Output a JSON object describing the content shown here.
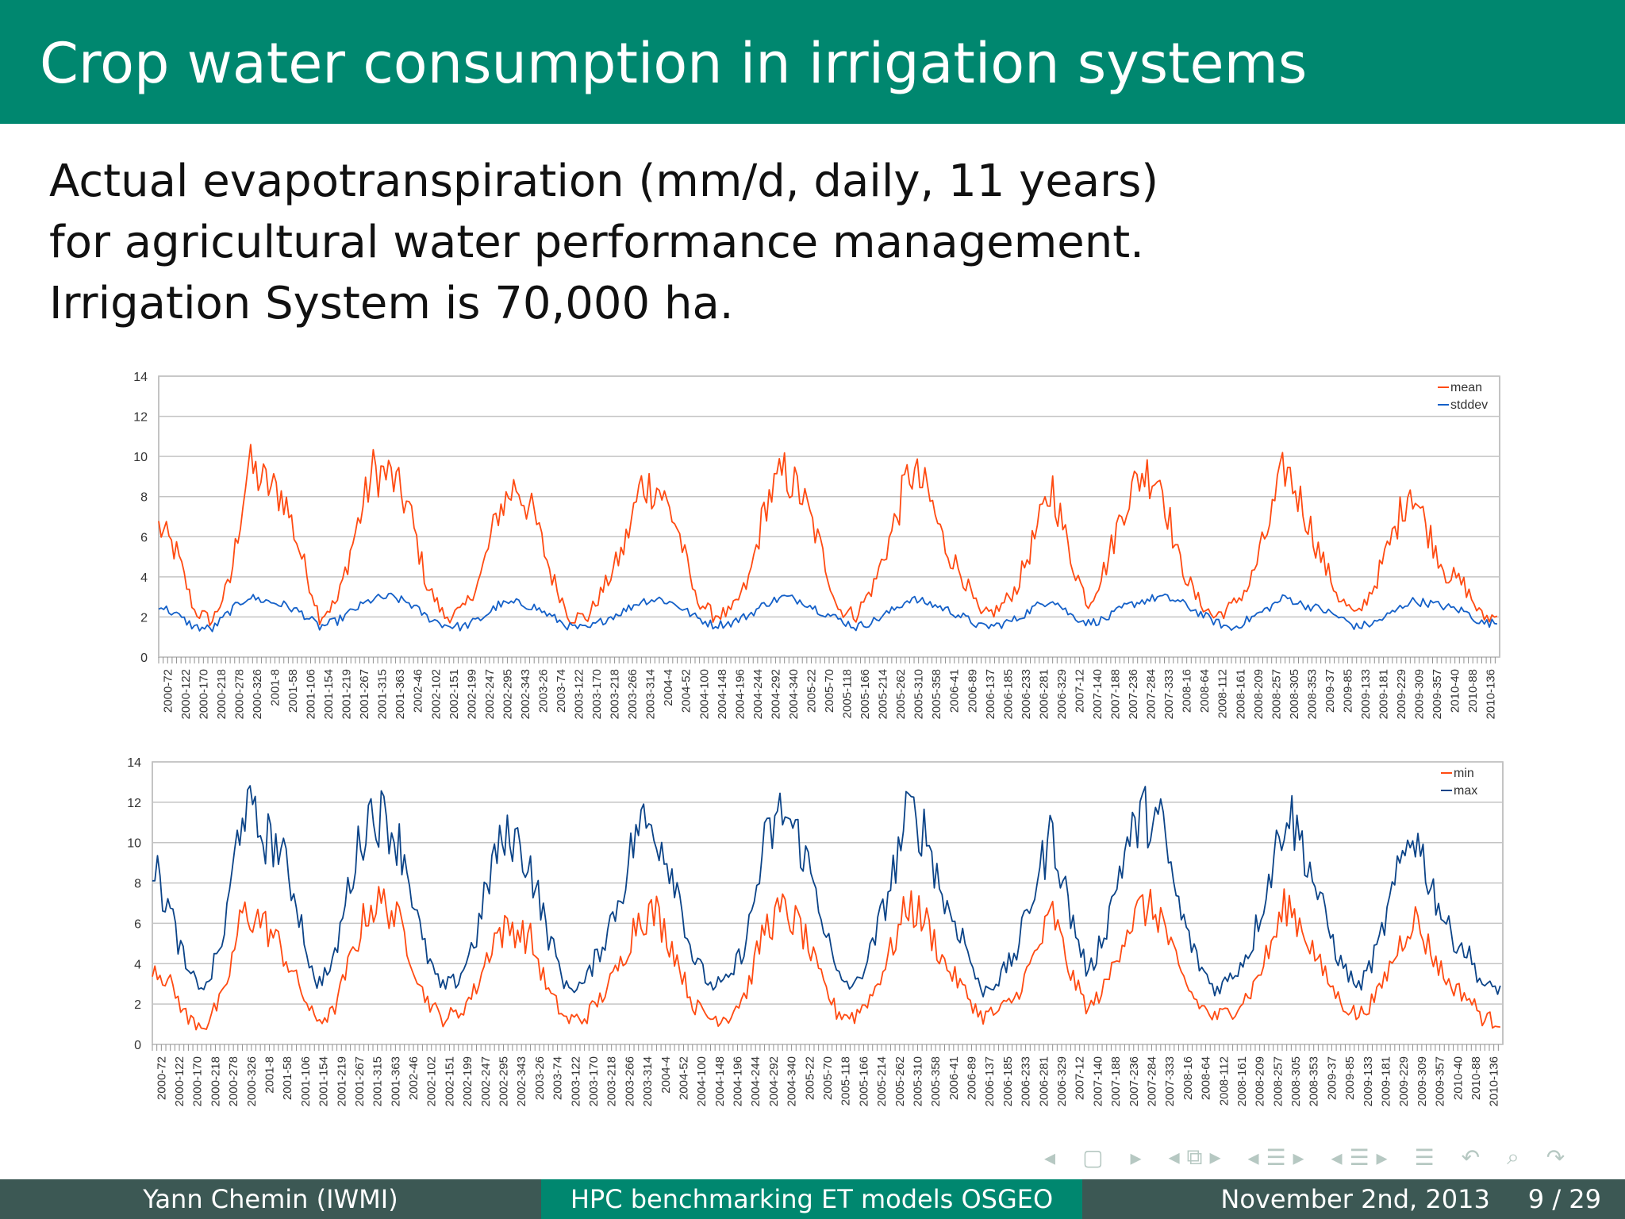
{
  "slide": {
    "title": "Crop water consumption in irrigation systems",
    "lines": [
      "Actual evapotranspiration (mm/d, daily, 11 years)",
      "for agricultural water performance management.",
      "Irrigation System is 70,000 ha."
    ]
  },
  "footer": {
    "author": "Yann Chemin  (IWMI)",
    "talk": "HPC benchmarking ET models OSGEO",
    "date": "November 2nd, 2013",
    "page": "9 / 29"
  },
  "nav_icons": [
    "nav-left-icon",
    "frame-icon",
    "nav-right-icon",
    "nav-left-icon",
    "subsection-icon",
    "nav-right-icon",
    "nav-left-icon",
    "section-icon",
    "nav-right-icon",
    "nav-left-icon",
    "doc-icon",
    "nav-right-icon",
    "menu-icon",
    "back-icon",
    "search-icon",
    "forward-icon"
  ],
  "colors": {
    "header": "#00876f",
    "footer_dark": "#3c5854",
    "orange": "#ff4b12",
    "blue": "#1460c8",
    "dark_blue": "#0c4488"
  },
  "chart_data": [
    {
      "type": "line",
      "title": "",
      "xlabel": "",
      "ylabel": "",
      "ylim": [
        0,
        14
      ],
      "yticks": [
        0,
        2,
        4,
        6,
        8,
        10,
        12,
        14
      ],
      "grid": true,
      "legend_position": "top-right",
      "categories": [
        "2000-72",
        "2000-122",
        "2000-170",
        "2000-218",
        "2000-278",
        "2000-326",
        "2001-8",
        "2001-58",
        "2001-106",
        "2001-154",
        "2001-219",
        "2001-267",
        "2001-315",
        "2001-363",
        "2002-46",
        "2002-102",
        "2002-151",
        "2002-199",
        "2002-247",
        "2002-295",
        "2002-343",
        "2003-26",
        "2003-74",
        "2003-122",
        "2003-170",
        "2003-218",
        "2003-266",
        "2003-314",
        "2004-4",
        "2004-52",
        "2004-100",
        "2004-148",
        "2004-196",
        "2004-244",
        "2004-292",
        "2004-340",
        "2005-22",
        "2005-70",
        "2005-118",
        "2005-166",
        "2005-214",
        "2005-262",
        "2005-310",
        "2005-358",
        "2006-41",
        "2006-89",
        "2006-137",
        "2006-185",
        "2006-233",
        "2006-281",
        "2006-329",
        "2007-12",
        "2007-140",
        "2007-188",
        "2007-236",
        "2007-284",
        "2007-333",
        "2008-16",
        "2008-64",
        "2008-112",
        "2008-161",
        "2008-209",
        "2008-257",
        "2008-305",
        "2008-353",
        "2009-37",
        "2009-85",
        "2009-133",
        "2009-181",
        "2009-229",
        "2009-309",
        "2009-357",
        "2010-40",
        "2010-88",
        "2010-136"
      ],
      "series": [
        {
          "name": "mean",
          "color": "#ff4b12",
          "values": [
            6.5,
            5.2,
            2.3,
            1.8,
            3.8,
            9.5,
            8.6,
            8.0,
            5.0,
            2.0,
            2.8,
            6.2,
            9.3,
            9.0,
            7.4,
            3.6,
            2.0,
            2.3,
            4.0,
            7.3,
            8.6,
            7.0,
            4.0,
            2.0,
            2.0,
            3.6,
            5.4,
            8.6,
            8.4,
            6.5,
            3.0,
            2.1,
            2.2,
            3.8,
            7.8,
            9.2,
            8.0,
            5.5,
            2.4,
            2.1,
            3.6,
            6.2,
            9.3,
            8.2,
            5.5,
            4.0,
            2.0,
            2.4,
            3.5,
            6.0,
            8.5,
            5.0,
            2.6,
            4.6,
            7.6,
            9.2,
            9.0,
            5.0,
            3.0,
            2.0,
            2.5,
            3.6,
            6.3,
            9.5,
            7.5,
            5.0,
            3.0,
            2.0,
            3.6,
            6.0,
            8.6,
            6.3,
            4.2,
            3.6,
            2.0
          ]
        },
        {
          "name": "stddev",
          "color": "#1460c8",
          "values": [
            2.6,
            2.1,
            1.5,
            1.4,
            2.3,
            3.0,
            2.8,
            2.6,
            2.2,
            1.5,
            1.8,
            2.4,
            2.9,
            3.0,
            2.7,
            2.0,
            1.6,
            1.5,
            1.9,
            2.6,
            2.7,
            2.5,
            2.0,
            1.5,
            1.4,
            1.9,
            2.3,
            2.8,
            2.9,
            2.6,
            2.0,
            1.6,
            1.7,
            2.1,
            2.7,
            3.0,
            2.8,
            2.3,
            1.9,
            1.5,
            1.8,
            2.3,
            2.9,
            2.7,
            2.4,
            2.0,
            1.5,
            1.6,
            1.9,
            2.5,
            2.9,
            2.1,
            1.7,
            1.9,
            2.5,
            2.8,
            3.0,
            2.8,
            2.3,
            1.8,
            1.4,
            1.9,
            2.4,
            3.0,
            2.6,
            2.4,
            2.0,
            1.5,
            1.7,
            2.2,
            2.8,
            2.7,
            2.5,
            2.3,
            1.7
          ]
        }
      ]
    },
    {
      "type": "line",
      "title": "",
      "xlabel": "",
      "ylabel": "",
      "ylim": [
        0,
        14
      ],
      "yticks": [
        0,
        2,
        4,
        6,
        8,
        10,
        12,
        14
      ],
      "grid": true,
      "legend_position": "top-right",
      "categories": [
        "2000-72",
        "2000-122",
        "2000-170",
        "2000-218",
        "2000-278",
        "2000-326",
        "2001-8",
        "2001-58",
        "2001-106",
        "2001-154",
        "2001-219",
        "2001-267",
        "2001-315",
        "2001-363",
        "2002-46",
        "2002-102",
        "2002-151",
        "2002-199",
        "2002-247",
        "2002-295",
        "2002-343",
        "2003-26",
        "2003-74",
        "2003-122",
        "2003-170",
        "2003-218",
        "2003-266",
        "2003-314",
        "2004-4",
        "2004-52",
        "2004-100",
        "2004-148",
        "2004-196",
        "2004-244",
        "2004-292",
        "2004-340",
        "2005-22",
        "2005-70",
        "2005-118",
        "2005-166",
        "2005-214",
        "2005-262",
        "2005-310",
        "2005-358",
        "2006-41",
        "2006-89",
        "2006-137",
        "2006-185",
        "2006-233",
        "2006-281",
        "2006-329",
        "2007-12",
        "2007-140",
        "2007-188",
        "2007-236",
        "2007-284",
        "2007-333",
        "2008-16",
        "2008-64",
        "2008-112",
        "2008-161",
        "2008-209",
        "2008-257",
        "2008-305",
        "2008-353",
        "2009-37",
        "2009-85",
        "2009-133",
        "2009-181",
        "2009-229",
        "2009-309",
        "2009-357",
        "2010-40",
        "2010-88",
        "2010-136"
      ],
      "series": [
        {
          "name": "min",
          "color": "#ff4b12",
          "values": [
            4.0,
            3.0,
            1.2,
            1.0,
            2.5,
            6.5,
            6.2,
            5.0,
            3.2,
            1.2,
            1.5,
            4.2,
            6.8,
            7.0,
            5.5,
            2.6,
            1.3,
            1.5,
            2.8,
            5.4,
            5.8,
            5.2,
            2.6,
            1.2,
            1.3,
            2.4,
            4.0,
            6.4,
            6.5,
            4.6,
            2.0,
            1.3,
            1.4,
            2.6,
            5.8,
            6.6,
            5.8,
            3.5,
            1.6,
            1.4,
            2.5,
            4.6,
            7.0,
            6.0,
            4.0,
            2.8,
            1.4,
            1.6,
            2.4,
            4.4,
            6.5,
            3.5,
            1.7,
            3.0,
            5.6,
            6.8,
            6.4,
            3.6,
            2.1,
            1.3,
            1.7,
            2.6,
            4.6,
            7.0,
            5.6,
            3.6,
            2.1,
            1.4,
            2.4,
            4.4,
            6.4,
            4.6,
            3.0,
            2.4,
            1.2
          ]
        },
        {
          "name": "max",
          "color": "#0c4488",
          "values": [
            9.0,
            6.5,
            3.4,
            2.8,
            5.5,
            12.0,
            10.5,
            9.8,
            7.2,
            3.0,
            3.8,
            8.2,
            11.5,
            11.2,
            9.4,
            5.0,
            2.8,
            3.2,
            5.4,
            9.4,
            10.4,
            8.8,
            5.4,
            2.8,
            3.0,
            5.0,
            7.4,
            11.0,
            10.6,
            8.4,
            4.4,
            2.9,
            3.1,
            5.2,
            9.8,
            11.6,
            10.0,
            7.2,
            3.4,
            2.8,
            4.8,
            8.0,
            11.6,
            10.4,
            7.0,
            5.4,
            2.6,
            3.2,
            4.6,
            7.8,
            10.6,
            6.4,
            3.4,
            6.0,
            9.6,
            11.4,
            11.0,
            6.8,
            4.2,
            2.7,
            3.4,
            4.8,
            8.2,
            11.8,
            9.6,
            6.6,
            4.0,
            2.8,
            4.6,
            7.8,
            10.8,
            8.0,
            5.6,
            4.6,
            2.8
          ]
        }
      ]
    }
  ]
}
